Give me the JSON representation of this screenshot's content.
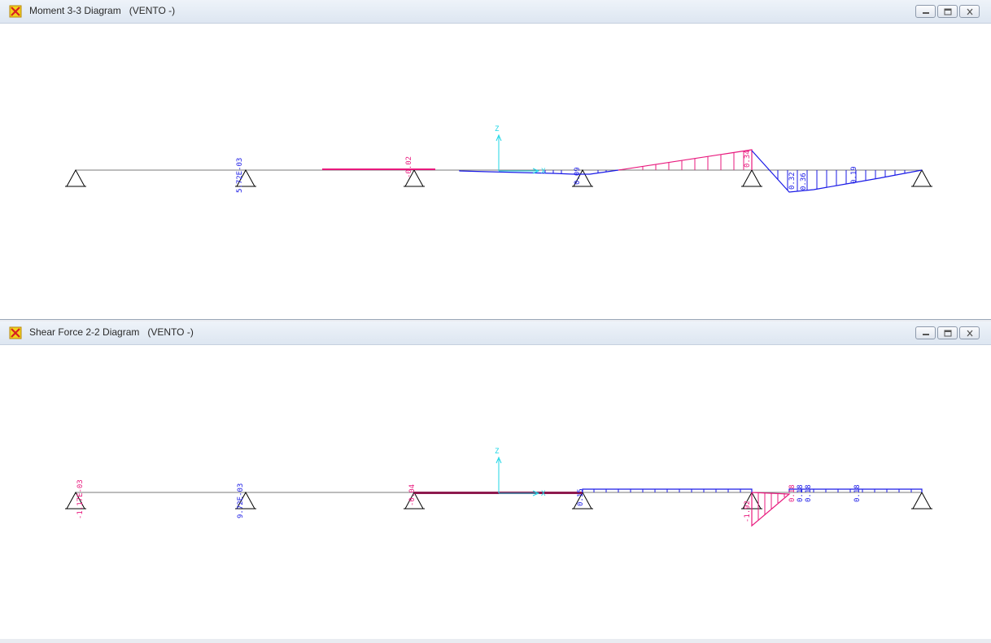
{
  "windows": [
    {
      "title": "Moment 3-3 Diagram   (VENTO -)",
      "axis_z_label": "Z",
      "axis_x_label": "X",
      "labels": {
        "l1": "5.72E-03",
        "l2": "-0.02",
        "l3": "0.09",
        "l4": "0.34",
        "l5": "0.32",
        "l6": "0.36",
        "l7": "0.19"
      }
    },
    {
      "title": "Shear Force 2-2 Diagram   (VENTO -)",
      "axis_z_label": "Z",
      "axis_x_label": "X",
      "labels": {
        "l1": "-1.17E-03",
        "l2": "9.72E-03",
        "l3": "-0.04",
        "l4": "0.15",
        "l5": "-1.92",
        "l6": "0.18",
        "l7": "0.18",
        "l8": "0.18",
        "l9": "0.18"
      }
    }
  ],
  "colors": {
    "positive": "#e8197d",
    "negative": "#1a1ae6",
    "axis": "#1fd6e6",
    "beam": "#7a7a7a",
    "support": "#000000"
  },
  "icons": {
    "app": "sap2000-icon",
    "minimize": "minimize-icon",
    "restore": "restore-icon",
    "close": "close-icon"
  }
}
